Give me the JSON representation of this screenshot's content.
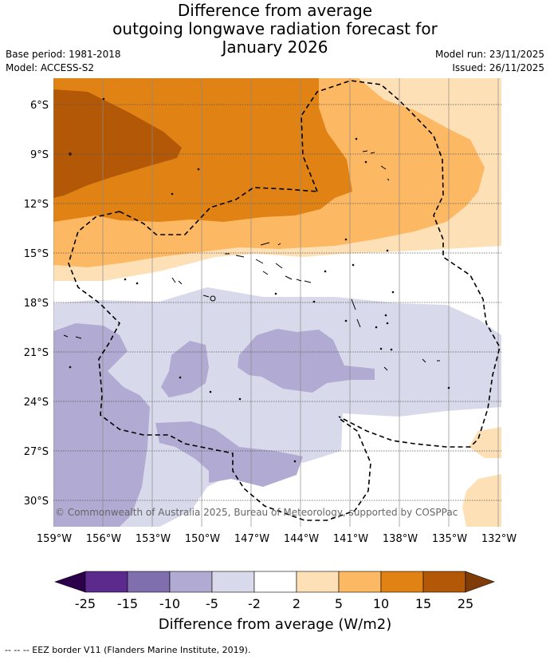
{
  "title": {
    "line1": "Difference from average",
    "line2": "outgoing longwave radiation forecast for",
    "line3": "January 2026"
  },
  "meta": {
    "base_period": "Base period: 1981-2018",
    "model": "Model: ACCESS-S2",
    "model_run": "Model run: 23/11/2025",
    "issued": "Issued: 26/11/2025"
  },
  "map": {
    "lat_labels": [
      "6°S",
      "9°S",
      "12°S",
      "15°S",
      "18°S",
      "21°S",
      "24°S",
      "27°S",
      "30°S"
    ],
    "lon_labels": [
      "159°W",
      "156°W",
      "153°W",
      "150°W",
      "147°W",
      "144°W",
      "141°W",
      "138°W",
      "135°W",
      "132°W"
    ],
    "copyright": "© Commonwealth of Australia 2025, Bureau of Meteorology, supported by COSPPac",
    "eez_label": "EEZ border"
  },
  "colorbar": {
    "ticks": [
      "-25",
      "-15",
      "-10",
      "-5",
      "-2",
      "2",
      "5",
      "10",
      "15",
      "25"
    ],
    "colors": [
      "#5b2a8c",
      "#7f6fae",
      "#b1aad2",
      "#d8d9eb",
      "#ffffff",
      "#fee0b6",
      "#fdb863",
      "#e08214",
      "#b35806"
    ],
    "under_color": "#2d004b",
    "over_color": "#7f3b08",
    "label": "Difference from average (W/m2)"
  },
  "palette": {
    "brown": "#b35806",
    "orange": "#e08214",
    "light_orange": "#fdb863",
    "peach": "#fee0b6",
    "lavender": "#d8d9eb",
    "light_purple": "#b1aad2"
  },
  "footer": "--  --  -- EEZ border V11 (Flanders Marine Institute, 2019)."
}
